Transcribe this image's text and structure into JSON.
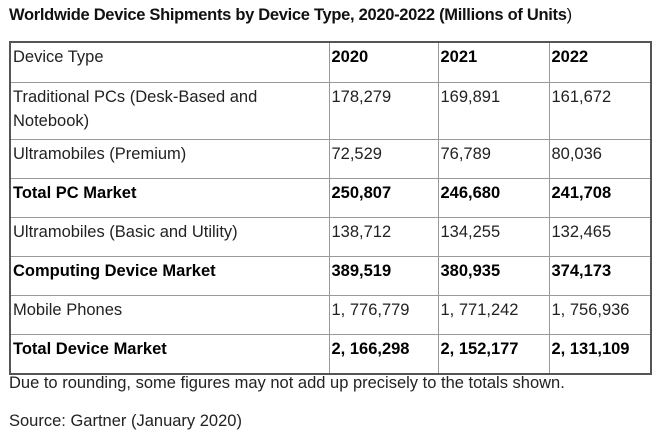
{
  "title": "Worldwide Device Shipments by Device Type, 2020-2022 (Millions of Units",
  "title_close": ")",
  "table": {
    "headers": [
      "Device Type",
      "2020",
      "2021",
      "2022"
    ],
    "rows": [
      {
        "label": "Traditional PCs (Desk-Based and Notebook)",
        "values": [
          "178,279",
          "169,891",
          "161,672"
        ],
        "bold": false
      },
      {
        "label": "Ultramobiles (Premium)",
        "values": [
          "72,529",
          "76,789",
          "80,036"
        ],
        "bold": false
      },
      {
        "label": "Total PC Market",
        "values": [
          "250,807",
          "246,680",
          "241,708"
        ],
        "bold": true
      },
      {
        "label": "Ultramobiles (Basic and Utility)",
        "values": [
          "138,712",
          "134,255",
          "132,465"
        ],
        "bold": false
      },
      {
        "label": "Computing Device Market",
        "values": [
          "389,519",
          "380,935",
          "374,173"
        ],
        "bold": true
      },
      {
        "label": "Mobile Phones",
        "values": [
          "1, 776,779",
          "1, 771,242",
          "1, 756,936"
        ],
        "bold": false
      },
      {
        "label": "Total Device Market",
        "values": [
          "2, 166,298",
          "2, 152,177",
          "2, 131,109"
        ],
        "bold": true
      }
    ]
  },
  "note": "Due to rounding, some figures may not add up precisely to the totals shown.",
  "source": "Source: Gartner (January 2020)"
}
